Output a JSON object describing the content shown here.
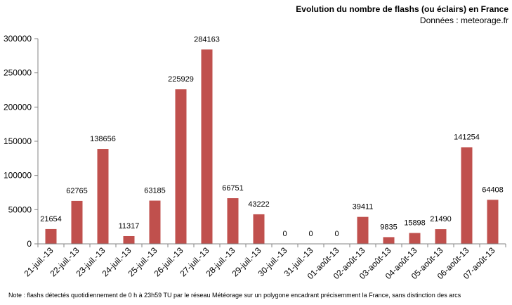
{
  "header": {
    "title": "Evolution du nombre de flashs (ou éclairs)  en France",
    "source": "Données : meteorage.fr"
  },
  "footer": {
    "note": "Note : flashs détectés quotidiennement de 0 h à 23h59 TU par le réseau Météorage sur un polygone encadrant précisemment la France, sans distinction des arcs"
  },
  "colors": {
    "bar": "#c0504d",
    "axis": "#868686"
  },
  "chart_data": {
    "type": "bar",
    "title": "Evolution du nombre de flashs (ou éclairs)  en France",
    "xlabel": "",
    "ylabel": "",
    "ylim": [
      0,
      300000
    ],
    "yticks": [
      0,
      50000,
      100000,
      150000,
      200000,
      250000,
      300000
    ],
    "grid": false,
    "legend": "none",
    "categories": [
      "21-juil.-13",
      "22-juil.-13",
      "23-juil.-13",
      "24-juil.-13",
      "25-juil.-13",
      "26-juil.-13",
      "27-juil.-13",
      "28-juil.-13",
      "29-juil.-13",
      "30-juil.-13",
      "31-juil.-13",
      "01-août-13",
      "02-août-13",
      "03-août-13",
      "04-août-13",
      "05-août-13",
      "06-août-13",
      "07-août-13"
    ],
    "values": [
      21654,
      62765,
      138656,
      11317,
      63185,
      225929,
      284163,
      66751,
      43222,
      0,
      0,
      0,
      39411,
      9835,
      15898,
      21490,
      141254,
      64408
    ]
  }
}
